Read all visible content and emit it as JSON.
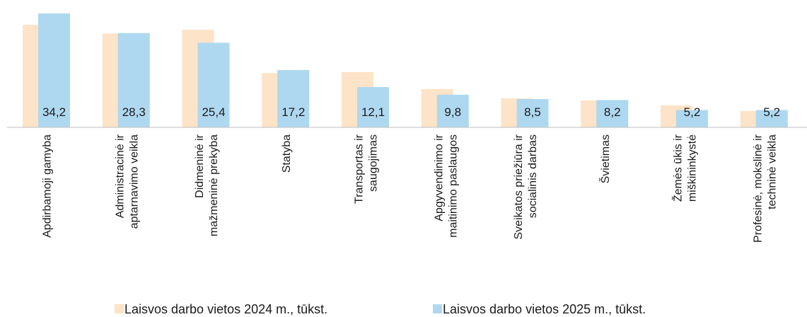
{
  "chart_data": {
    "type": "bar",
    "categories": [
      [
        "Apdirbamoji gamyba"
      ],
      [
        "Administracinė ir",
        "aptarnavimo veikla"
      ],
      [
        "Didmeninė ir",
        "mažmeninė prekyba"
      ],
      [
        "Statyba"
      ],
      [
        "Transportas ir",
        "saugojimas"
      ],
      [
        "Apgyvendinimo ir",
        "maitinimo paslaugos"
      ],
      [
        "Sveikatos priežiūra ir",
        "socialinis darbas"
      ],
      [
        "Švietimas"
      ],
      [
        "Žemės ūkis ir",
        "miškininkystė"
      ],
      [
        "Profesinė, mokslinė ir",
        "techninė veikla"
      ]
    ],
    "series": [
      {
        "name": "Laisvos darbo vietos 2024 m., tūkst.",
        "color": "#fde3c7",
        "values": [
          30.8,
          28.2,
          29.3,
          16.3,
          16.6,
          11.5,
          8.7,
          8.1,
          6.6,
          4.9
        ]
      },
      {
        "name": "Laisvos darbo vietos 2025 m., tūkst.",
        "color": "#aed8f0",
        "values": [
          34.2,
          28.3,
          25.4,
          17.2,
          12.1,
          9.8,
          8.5,
          8.2,
          5.2,
          5.2
        ],
        "value_labels": [
          "34,2",
          "28,3",
          "25,4",
          "17,2",
          "12,1",
          "9,8",
          "8,5",
          "8,2",
          "5,2",
          "5,2"
        ]
      }
    ],
    "ylim": [
      0,
      34.2
    ]
  }
}
